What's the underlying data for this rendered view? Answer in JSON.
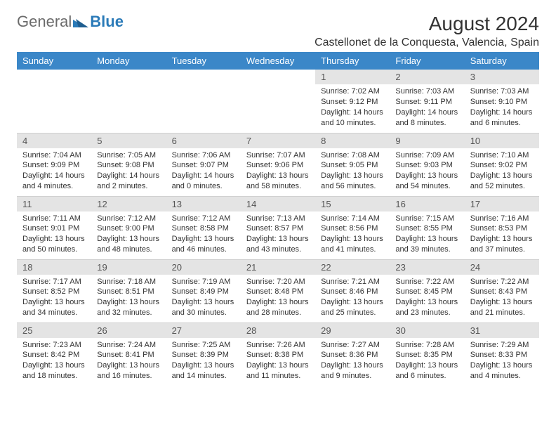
{
  "brand": {
    "part1": "General",
    "part2": "Blue"
  },
  "title": "August 2024",
  "location": "Castellonet de la Conquesta, Valencia, Spain",
  "colors": {
    "header_bg": "#3b87c8",
    "header_text": "#ffffff",
    "daynum_bg": "#e4e4e4",
    "daynum_text": "#555555",
    "body_text": "#333333",
    "logo_gray": "#6b6b6b",
    "logo_blue": "#2a7ab8",
    "grid_line": "#d0d0d0",
    "background": "#ffffff"
  },
  "dayHeaders": [
    "Sunday",
    "Monday",
    "Tuesday",
    "Wednesday",
    "Thursday",
    "Friday",
    "Saturday"
  ],
  "weeks": [
    [
      {
        "n": "",
        "sr": "",
        "ss": "",
        "dl": ""
      },
      {
        "n": "",
        "sr": "",
        "ss": "",
        "dl": ""
      },
      {
        "n": "",
        "sr": "",
        "ss": "",
        "dl": ""
      },
      {
        "n": "",
        "sr": "",
        "ss": "",
        "dl": ""
      },
      {
        "n": "1",
        "sr": "7:02 AM",
        "ss": "9:12 PM",
        "dl": "14 hours and 10 minutes."
      },
      {
        "n": "2",
        "sr": "7:03 AM",
        "ss": "9:11 PM",
        "dl": "14 hours and 8 minutes."
      },
      {
        "n": "3",
        "sr": "7:03 AM",
        "ss": "9:10 PM",
        "dl": "14 hours and 6 minutes."
      }
    ],
    [
      {
        "n": "4",
        "sr": "7:04 AM",
        "ss": "9:09 PM",
        "dl": "14 hours and 4 minutes."
      },
      {
        "n": "5",
        "sr": "7:05 AM",
        "ss": "9:08 PM",
        "dl": "14 hours and 2 minutes."
      },
      {
        "n": "6",
        "sr": "7:06 AM",
        "ss": "9:07 PM",
        "dl": "14 hours and 0 minutes."
      },
      {
        "n": "7",
        "sr": "7:07 AM",
        "ss": "9:06 PM",
        "dl": "13 hours and 58 minutes."
      },
      {
        "n": "8",
        "sr": "7:08 AM",
        "ss": "9:05 PM",
        "dl": "13 hours and 56 minutes."
      },
      {
        "n": "9",
        "sr": "7:09 AM",
        "ss": "9:03 PM",
        "dl": "13 hours and 54 minutes."
      },
      {
        "n": "10",
        "sr": "7:10 AM",
        "ss": "9:02 PM",
        "dl": "13 hours and 52 minutes."
      }
    ],
    [
      {
        "n": "11",
        "sr": "7:11 AM",
        "ss": "9:01 PM",
        "dl": "13 hours and 50 minutes."
      },
      {
        "n": "12",
        "sr": "7:12 AM",
        "ss": "9:00 PM",
        "dl": "13 hours and 48 minutes."
      },
      {
        "n": "13",
        "sr": "7:12 AM",
        "ss": "8:58 PM",
        "dl": "13 hours and 46 minutes."
      },
      {
        "n": "14",
        "sr": "7:13 AM",
        "ss": "8:57 PM",
        "dl": "13 hours and 43 minutes."
      },
      {
        "n": "15",
        "sr": "7:14 AM",
        "ss": "8:56 PM",
        "dl": "13 hours and 41 minutes."
      },
      {
        "n": "16",
        "sr": "7:15 AM",
        "ss": "8:55 PM",
        "dl": "13 hours and 39 minutes."
      },
      {
        "n": "17",
        "sr": "7:16 AM",
        "ss": "8:53 PM",
        "dl": "13 hours and 37 minutes."
      }
    ],
    [
      {
        "n": "18",
        "sr": "7:17 AM",
        "ss": "8:52 PM",
        "dl": "13 hours and 34 minutes."
      },
      {
        "n": "19",
        "sr": "7:18 AM",
        "ss": "8:51 PM",
        "dl": "13 hours and 32 minutes."
      },
      {
        "n": "20",
        "sr": "7:19 AM",
        "ss": "8:49 PM",
        "dl": "13 hours and 30 minutes."
      },
      {
        "n": "21",
        "sr": "7:20 AM",
        "ss": "8:48 PM",
        "dl": "13 hours and 28 minutes."
      },
      {
        "n": "22",
        "sr": "7:21 AM",
        "ss": "8:46 PM",
        "dl": "13 hours and 25 minutes."
      },
      {
        "n": "23",
        "sr": "7:22 AM",
        "ss": "8:45 PM",
        "dl": "13 hours and 23 minutes."
      },
      {
        "n": "24",
        "sr": "7:22 AM",
        "ss": "8:43 PM",
        "dl": "13 hours and 21 minutes."
      }
    ],
    [
      {
        "n": "25",
        "sr": "7:23 AM",
        "ss": "8:42 PM",
        "dl": "13 hours and 18 minutes."
      },
      {
        "n": "26",
        "sr": "7:24 AM",
        "ss": "8:41 PM",
        "dl": "13 hours and 16 minutes."
      },
      {
        "n": "27",
        "sr": "7:25 AM",
        "ss": "8:39 PM",
        "dl": "13 hours and 14 minutes."
      },
      {
        "n": "28",
        "sr": "7:26 AM",
        "ss": "8:38 PM",
        "dl": "13 hours and 11 minutes."
      },
      {
        "n": "29",
        "sr": "7:27 AM",
        "ss": "8:36 PM",
        "dl": "13 hours and 9 minutes."
      },
      {
        "n": "30",
        "sr": "7:28 AM",
        "ss": "8:35 PM",
        "dl": "13 hours and 6 minutes."
      },
      {
        "n": "31",
        "sr": "7:29 AM",
        "ss": "8:33 PM",
        "dl": "13 hours and 4 minutes."
      }
    ]
  ],
  "labels": {
    "sunrise": "Sunrise:",
    "sunset": "Sunset:",
    "daylight": "Daylight:"
  }
}
